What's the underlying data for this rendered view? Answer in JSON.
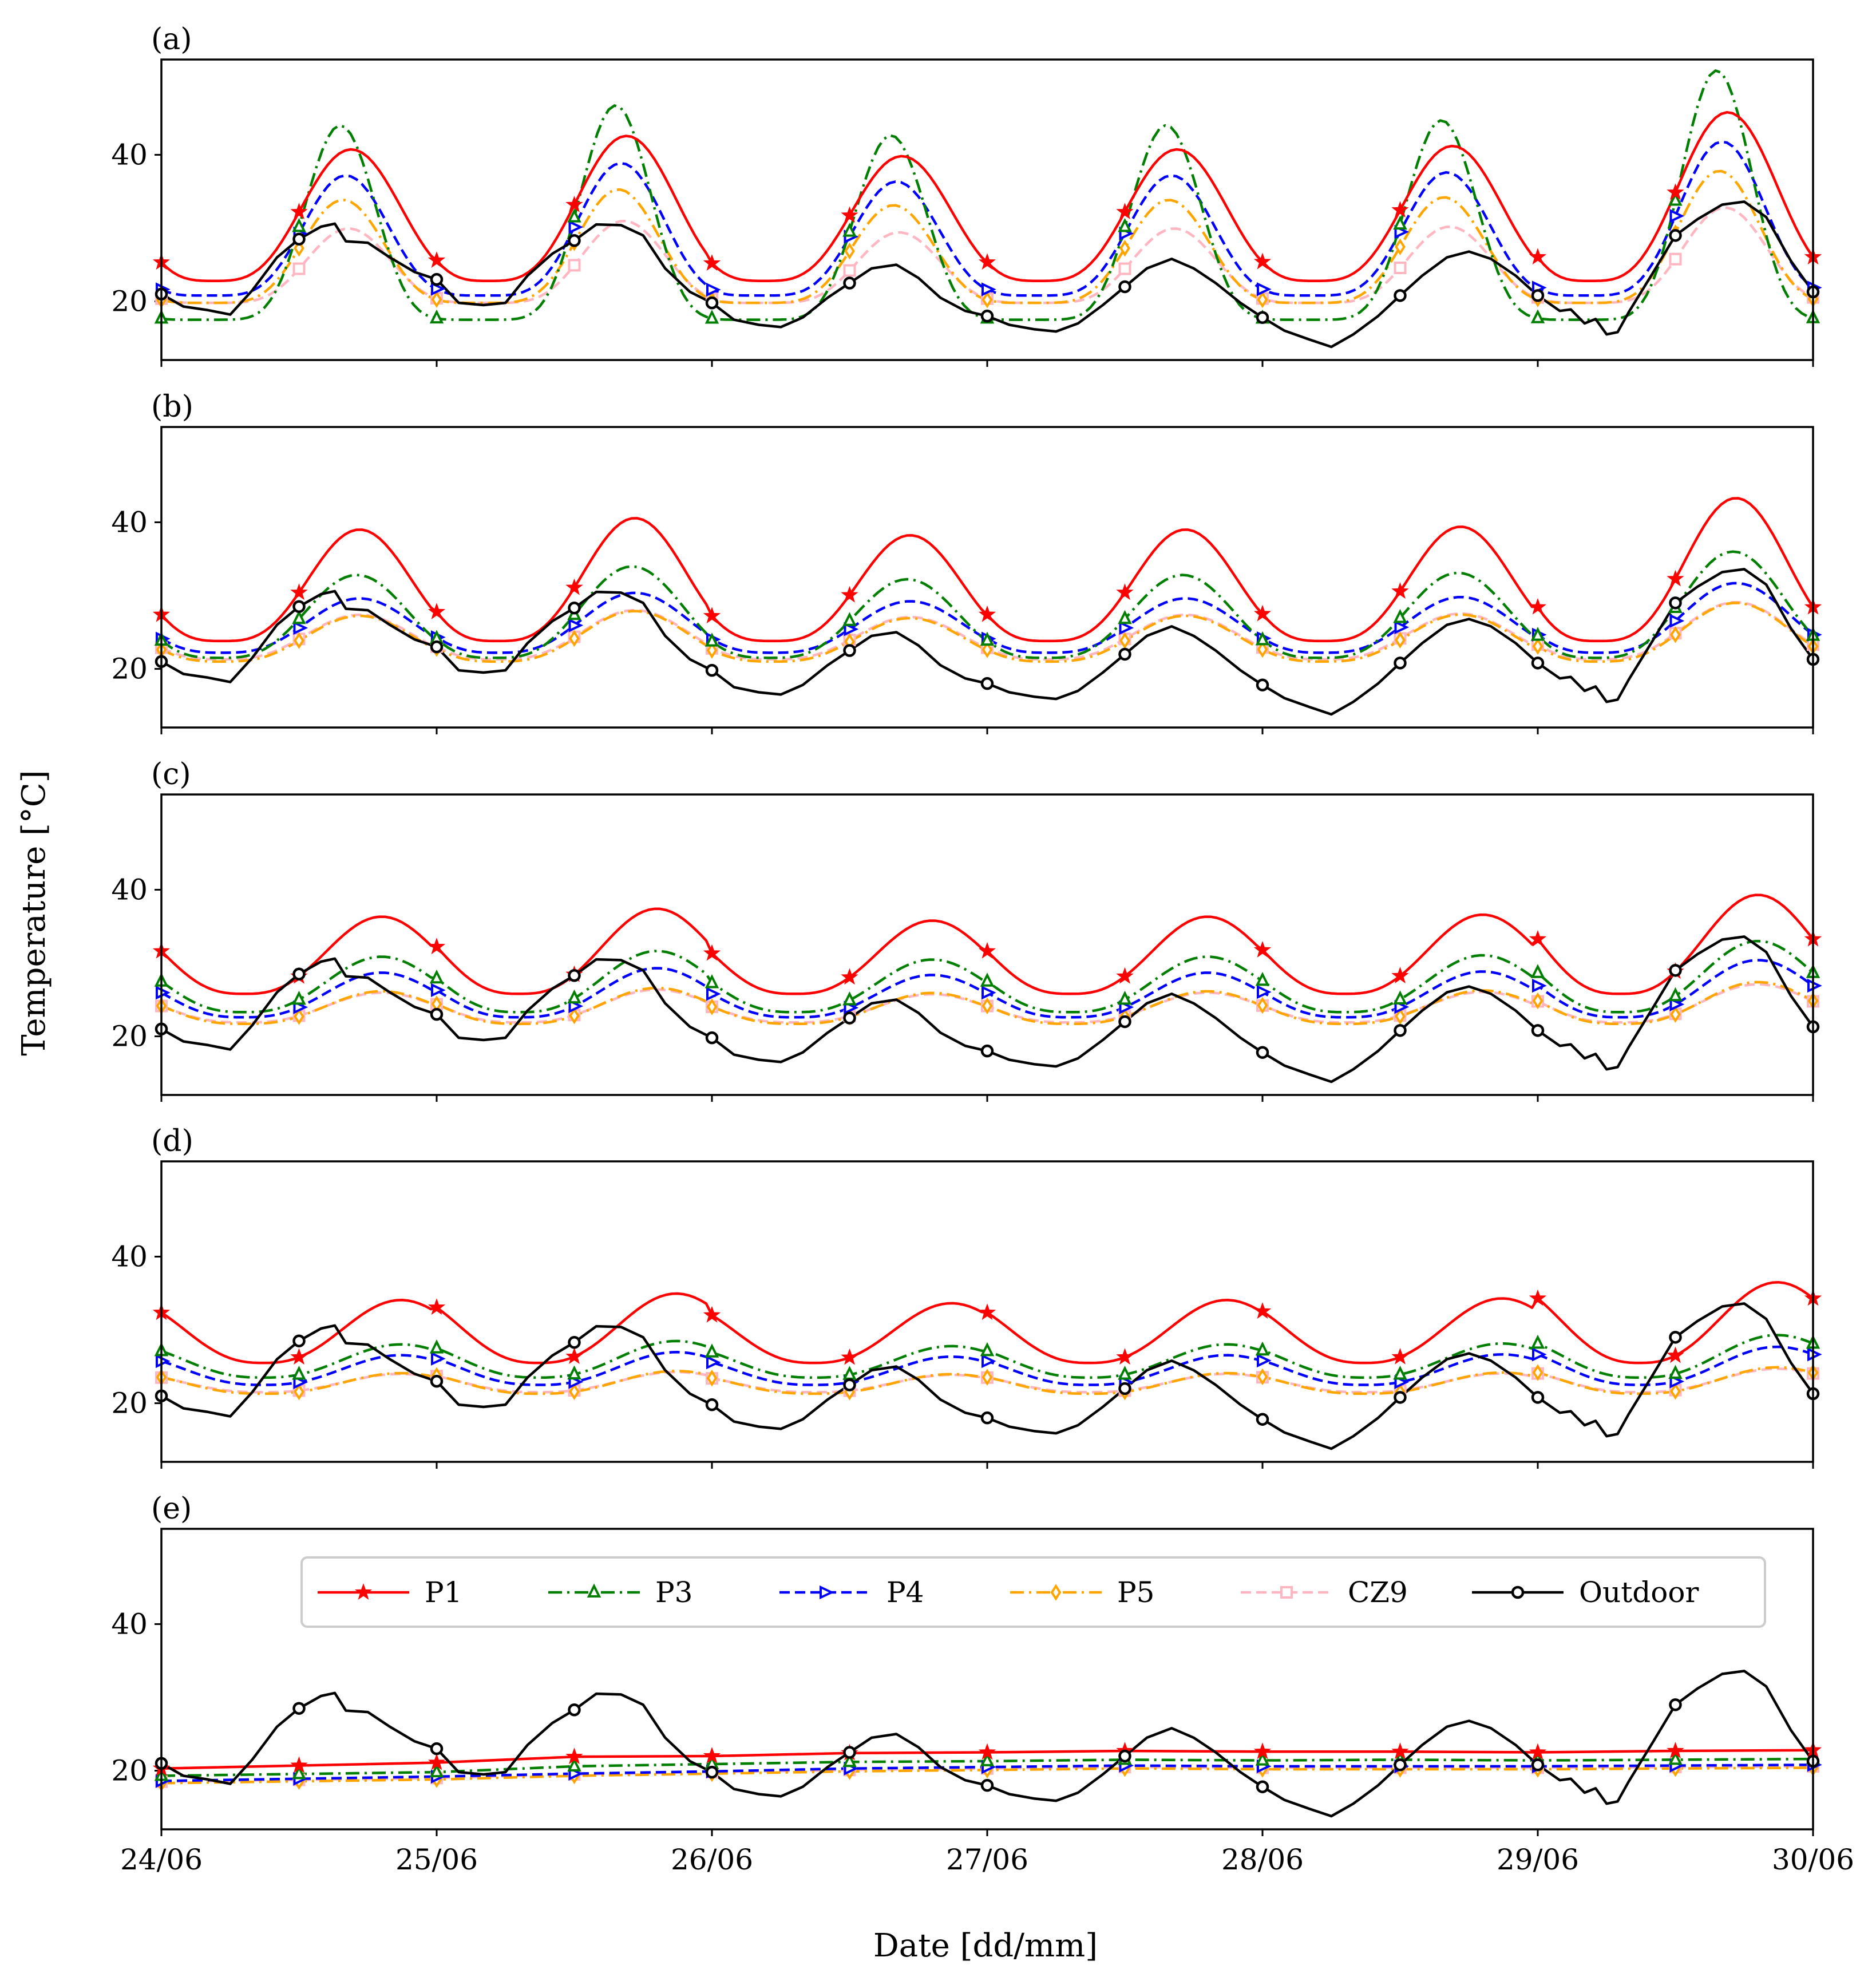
{
  "colors": {
    "P1": "#ff0000",
    "P3": "#007f00",
    "P4": "#0000ff",
    "P5": "#ffa500",
    "CZ9": "#ffb6c1",
    "Outdoor": "#000000"
  },
  "chart_data": {
    "type": "line",
    "ylabel": "Temperature [°C]",
    "xlabel": "Date [dd/mm]",
    "x_unit": "days since 24/06 00:00",
    "xlim": [
      0,
      6
    ],
    "ylim": [
      12,
      53
    ],
    "yticks": [
      20,
      40
    ],
    "xticks": [
      {
        "value": 0,
        "label": "24/06"
      },
      {
        "value": 1,
        "label": "25/06"
      },
      {
        "value": 2,
        "label": "26/06"
      },
      {
        "value": 3,
        "label": "27/06"
      },
      {
        "value": 4,
        "label": "28/06"
      },
      {
        "value": 5,
        "label": "29/06"
      },
      {
        "value": 6,
        "label": "30/06"
      }
    ],
    "legend": {
      "location": "upper center of panel (e)",
      "entries": [
        {
          "name": "P1",
          "marker": "star",
          "dash": "solid"
        },
        {
          "name": "P3",
          "marker": "triangle",
          "dash": "dashdot"
        },
        {
          "name": "P4",
          "marker": "triangle-right",
          "dash": "dashed"
        },
        {
          "name": "P5",
          "marker": "diamond",
          "dash": "dashdot"
        },
        {
          "name": "CZ9",
          "marker": "square",
          "dash": "dashed"
        },
        {
          "name": "Outdoor",
          "marker": "circle",
          "dash": "solid"
        }
      ]
    },
    "outdoor": {
      "name": "Outdoor",
      "x": [
        0,
        0.08,
        0.17,
        0.25,
        0.33,
        0.42,
        0.5,
        0.58,
        0.63,
        0.67,
        0.75,
        0.83,
        0.92,
        1.0,
        1.08,
        1.17,
        1.25,
        1.33,
        1.42,
        1.5,
        1.58,
        1.67,
        1.75,
        1.83,
        1.92,
        2.0,
        2.08,
        2.17,
        2.25,
        2.33,
        2.42,
        2.5,
        2.58,
        2.67,
        2.75,
        2.83,
        2.92,
        3.0,
        3.08,
        3.17,
        3.25,
        3.33,
        3.42,
        3.5,
        3.58,
        3.67,
        3.75,
        3.83,
        3.92,
        4.0,
        4.08,
        4.17,
        4.25,
        4.33,
        4.42,
        4.5,
        4.58,
        4.67,
        4.75,
        4.83,
        4.92,
        5.0,
        5.08,
        5.12,
        5.17,
        5.21,
        5.25,
        5.29,
        5.33,
        5.42,
        5.5,
        5.58,
        5.67,
        5.75,
        5.83,
        5.92,
        6.0
      ],
      "values": [
        21,
        19.3,
        18.8,
        18.2,
        21.5,
        26,
        28.5,
        30.2,
        30.6,
        28.2,
        28,
        26,
        24,
        23,
        19.8,
        19.5,
        19.8,
        23.5,
        26.5,
        28.3,
        30.5,
        30.4,
        29,
        24.5,
        21.3,
        19.8,
        17.5,
        16.8,
        16.5,
        17.8,
        20.5,
        22.5,
        24.5,
        25,
        23.2,
        20.5,
        18.7,
        18,
        16.8,
        16.2,
        15.9,
        17,
        19.5,
        22,
        24.5,
        25.8,
        24.5,
        22.5,
        19.8,
        17.8,
        16,
        14.8,
        13.8,
        15.5,
        18,
        20.8,
        23.5,
        26,
        26.8,
        25.8,
        23.5,
        20.8,
        18.7,
        18.9,
        17,
        17.6,
        15.5,
        15.8,
        18.5,
        24,
        29,
        31.2,
        33.2,
        33.6,
        31.5,
        25.5,
        21.3
      ],
      "marker_x": [
        0,
        0.5,
        1,
        1.5,
        2,
        2.5,
        3,
        3.5,
        4,
        4.5,
        5,
        5.5,
        6
      ]
    },
    "series_model": "value(t) = base + amp*((cos(2*pi*(t-peak))+1)/2)^sharp * daily_scale[day]; P1/P3/P4/P5/CZ9 markers at t = 0, 0.5, ..., 6 (one marker per half day)",
    "daily_scale": [
      0.78,
      0.86,
      0.74,
      0.78,
      0.8,
      1.0
    ],
    "panels": [
      {
        "label": "(a)",
        "series": [
          {
            "name": "P1",
            "base": 22.8,
            "amp": 23,
            "peak": 0.69,
            "sharp": 1.7
          },
          {
            "name": "P3",
            "base": 17.5,
            "amp": 34,
            "peak": 0.65,
            "sharp": 3.2
          },
          {
            "name": "P4",
            "base": 20.8,
            "amp": 21,
            "peak": 0.67,
            "sharp": 2.2
          },
          {
            "name": "P5",
            "base": 19.8,
            "amp": 18,
            "peak": 0.66,
            "sharp": 2.4
          },
          {
            "name": "CZ9",
            "base": 19.8,
            "amp": 13,
            "peak": 0.68,
            "sharp": 2.3
          }
        ]
      },
      {
        "label": "(b)",
        "series": [
          {
            "name": "P1",
            "base": 23.8,
            "amp": 19.5,
            "peak": 0.72,
            "sharp": 1.6
          },
          {
            "name": "P3",
            "base": 21.5,
            "amp": 14.5,
            "peak": 0.71,
            "sharp": 1.6
          },
          {
            "name": "P4",
            "base": 22.2,
            "amp": 9.5,
            "peak": 0.72,
            "sharp": 1.5
          },
          {
            "name": "P5",
            "base": 21.0,
            "amp": 8.0,
            "peak": 0.72,
            "sharp": 1.5
          },
          {
            "name": "CZ9",
            "base": 21.3,
            "amp": 7.8,
            "peak": 0.72,
            "sharp": 1.5
          }
        ]
      },
      {
        "label": "(c)",
        "series": [
          {
            "name": "P1",
            "base": 25.8,
            "amp": 13.5,
            "peak": 0.8,
            "sharp": 1.4
          },
          {
            "name": "P3",
            "base": 23.3,
            "amp": 9.7,
            "peak": 0.8,
            "sharp": 1.4
          },
          {
            "name": "P4",
            "base": 22.6,
            "amp": 7.8,
            "peak": 0.8,
            "sharp": 1.4
          },
          {
            "name": "P5",
            "base": 21.7,
            "amp": 5.7,
            "peak": 0.8,
            "sharp": 1.4
          },
          {
            "name": "CZ9",
            "base": 21.9,
            "amp": 5.2,
            "peak": 0.8,
            "sharp": 1.4
          }
        ]
      },
      {
        "label": "(d)",
        "series": [
          {
            "name": "P1",
            "base": 25.5,
            "amp": 11.0,
            "peak": 0.87,
            "sharp": 1.3
          },
          {
            "name": "P3",
            "base": 23.5,
            "amp": 5.8,
            "peak": 0.87,
            "sharp": 1.3
          },
          {
            "name": "P4",
            "base": 22.5,
            "amp": 5.2,
            "peak": 0.87,
            "sharp": 1.3
          },
          {
            "name": "P5",
            "base": 21.3,
            "amp": 3.6,
            "peak": 0.87,
            "sharp": 1.3
          },
          {
            "name": "CZ9",
            "base": 21.5,
            "amp": 3.2,
            "peak": 0.87,
            "sharp": 1.3
          }
        ]
      },
      {
        "label": "(e)",
        "series": [
          {
            "name": "P1",
            "x": [
              0,
              1,
              1.5,
              2,
              2.5,
              3,
              3.5,
              4,
              4.5,
              5,
              5.5,
              6
            ],
            "values": [
              20.3,
              21.1,
              21.9,
              22.0,
              22.4,
              22.5,
              22.7,
              22.6,
              22.6,
              22.5,
              22.7,
              22.8
            ]
          },
          {
            "name": "P3",
            "x": [
              0,
              1,
              1.5,
              2,
              2.5,
              3,
              3.5,
              4,
              4.5,
              5,
              5.5,
              6
            ],
            "values": [
              19.3,
              19.8,
              20.6,
              20.9,
              21.2,
              21.3,
              21.5,
              21.4,
              21.5,
              21.4,
              21.5,
              21.6
            ]
          },
          {
            "name": "P4",
            "x": [
              0,
              1,
              1.5,
              2,
              2.5,
              3,
              3.5,
              4,
              4.5,
              5,
              5.5,
              6
            ],
            "values": [
              18.6,
              19.2,
              19.6,
              19.9,
              20.3,
              20.5,
              20.7,
              20.6,
              20.6,
              20.6,
              20.7,
              20.8
            ]
          },
          {
            "name": "P5",
            "x": [
              0,
              1,
              1.5,
              2,
              2.5,
              3,
              3.5,
              4,
              4.5,
              5,
              5.5,
              6
            ],
            "values": [
              18.3,
              18.8,
              19.3,
              19.6,
              19.9,
              20.1,
              20.3,
              20.2,
              20.2,
              20.2,
              20.3,
              20.4
            ]
          },
          {
            "name": "CZ9",
            "x": [
              0,
              1,
              1.5,
              2,
              2.5,
              3,
              3.5,
              4,
              4.5,
              5,
              5.5,
              6
            ],
            "values": [
              18.5,
              19.0,
              19.5,
              19.8,
              20.1,
              20.3,
              20.5,
              20.4,
              20.4,
              20.4,
              20.5,
              20.6
            ]
          }
        ]
      }
    ]
  }
}
